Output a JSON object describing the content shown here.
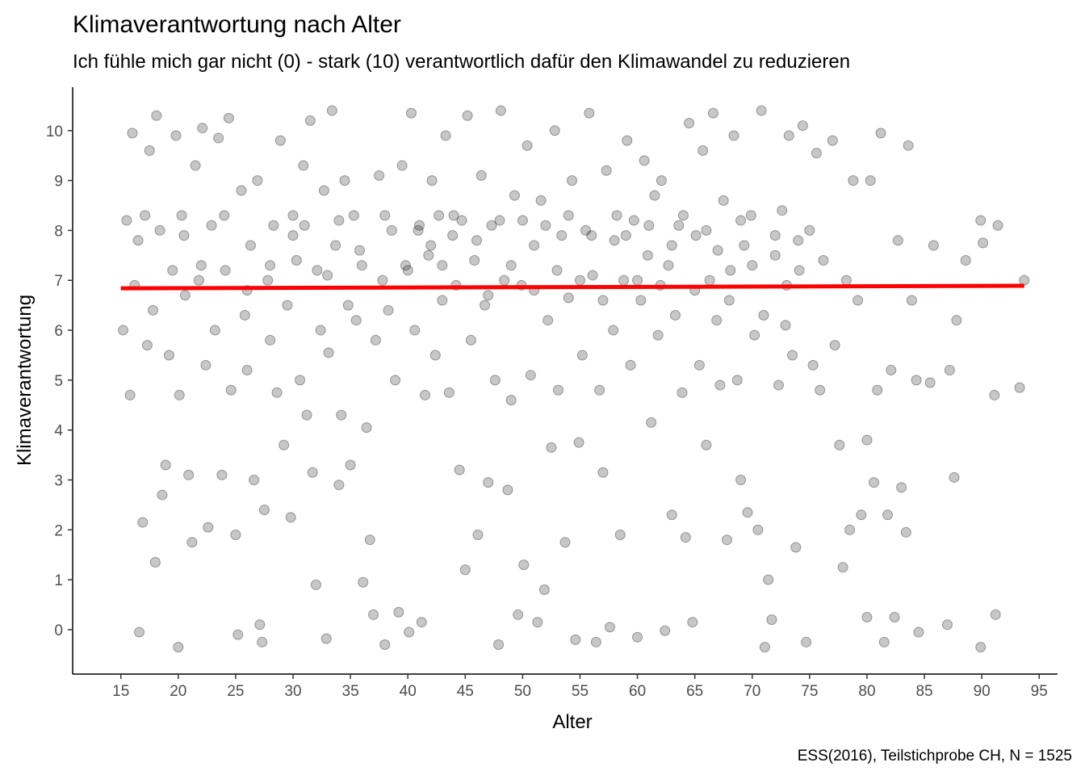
{
  "chart_data": {
    "type": "scatter",
    "title": "Klimaverantwortung nach Alter",
    "subtitle": "Ich fühle mich gar nicht (0) - stark (10) verantwortlich dafür den Klimawandel zu reduzieren",
    "x_label": "Alter",
    "y_label": "Klimaverantwortung",
    "caption": "ESS(2016), Teilstichprobe CH, N = 1525",
    "xlim": [
      10.8,
      96.6
    ],
    "ylim": [
      -0.89,
      10.87
    ],
    "xticks": [
      15,
      20,
      25,
      30,
      35,
      40,
      45,
      50,
      55,
      60,
      65,
      70,
      75,
      80,
      85,
      90,
      95
    ],
    "yticks": [
      0,
      1,
      2,
      3,
      4,
      5,
      6,
      7,
      8,
      9,
      10
    ],
    "grid": false,
    "points": {
      "color": "rgba(0,0,0,0.22)",
      "x": [
        15.2,
        15.5,
        15.8,
        16.0,
        16.2,
        16.5,
        16.6,
        16.9,
        17.1,
        17.3,
        17.5,
        17.8,
        18.0,
        18.1,
        18.4,
        18.6,
        18.9,
        19.2,
        19.5,
        19.8,
        20.0,
        20.1,
        20.3,
        20.6,
        20.9,
        21.2,
        21.5,
        21.8,
        22.1,
        22.4,
        22.6,
        22.9,
        23.2,
        23.5,
        23.8,
        24.1,
        24.4,
        24.6,
        25.0,
        25.2,
        25.5,
        25.8,
        26.0,
        26.3,
        26.6,
        26.9,
        27.1,
        27.3,
        27.5,
        27.8,
        28.0,
        28.3,
        28.6,
        28.9,
        29.2,
        29.5,
        29.8,
        30.0,
        30.3,
        30.6,
        30.9,
        31.2,
        31.5,
        31.7,
        32.0,
        32.1,
        32.4,
        32.7,
        32.9,
        33.1,
        33.4,
        33.7,
        34.0,
        34.2,
        34.5,
        34.8,
        35.0,
        35.3,
        35.5,
        35.8,
        36.1,
        36.4,
        36.7,
        37.0,
        37.2,
        37.5,
        37.8,
        38.0,
        38.3,
        38.6,
        38.9,
        39.2,
        39.5,
        39.8,
        40.1,
        40.3,
        40.6,
        40.9,
        41.2,
        41.5,
        41.8,
        42.1,
        42.4,
        42.7,
        43.0,
        43.3,
        43.6,
        43.9,
        44.2,
        44.5,
        44.7,
        45.0,
        45.2,
        45.5,
        45.8,
        46.1,
        46.4,
        46.7,
        47.0,
        47.3,
        47.6,
        47.9,
        48.1,
        48.4,
        48.7,
        49.0,
        49.3,
        49.6,
        49.9,
        50.1,
        50.4,
        50.7,
        51.0,
        51.3,
        51.6,
        51.9,
        52.2,
        52.5,
        52.8,
        53.1,
        53.4,
        53.7,
        54.0,
        54.3,
        54.6,
        54.9,
        55.2,
        55.5,
        55.8,
        56.1,
        56.4,
        56.7,
        57.0,
        57.3,
        57.6,
        57.9,
        58.2,
        58.5,
        58.8,
        59.1,
        59.4,
        59.7,
        60.0,
        60.3,
        60.6,
        60.9,
        61.2,
        61.5,
        61.8,
        62.1,
        62.4,
        62.7,
        63.0,
        63.3,
        63.6,
        63.9,
        64.2,
        64.5,
        64.8,
        65.1,
        65.4,
        65.7,
        66.0,
        66.3,
        66.6,
        66.9,
        67.2,
        67.5,
        67.8,
        68.1,
        68.4,
        68.7,
        69.0,
        69.3,
        69.6,
        69.9,
        70.2,
        70.5,
        70.8,
        71.1,
        71.4,
        71.7,
        72.0,
        72.3,
        72.6,
        72.9,
        73.2,
        73.5,
        73.8,
        74.1,
        74.4,
        74.7,
        75.0,
        75.3,
        75.6,
        75.9,
        76.2,
        77.0,
        77.2,
        77.6,
        77.9,
        78.2,
        78.5,
        78.8,
        79.2,
        79.5,
        80.0,
        80.0,
        80.3,
        80.6,
        80.9,
        81.2,
        81.5,
        81.8,
        82.1,
        82.4,
        82.7,
        83.0,
        83.4,
        83.6,
        83.9,
        84.3,
        84.5,
        85.5,
        85.8,
        87.0,
        87.2,
        87.6,
        87.8,
        88.6,
        89.9,
        89.9,
        90.1,
        91.1,
        91.2,
        91.4,
        93.3,
        93.7,
        20.5,
        22,
        24,
        26,
        28,
        30,
        31,
        33,
        34,
        36,
        38,
        40,
        41,
        42,
        43,
        44,
        46,
        47,
        48,
        49,
        50,
        51,
        52,
        53,
        54,
        55,
        56,
        57,
        58,
        59,
        60,
        61,
        62,
        63,
        64,
        65,
        66,
        67,
        68,
        69,
        70,
        71,
        72,
        73,
        74
      ],
      "y": [
        6.0,
        8.2,
        4.7,
        9.95,
        6.9,
        7.8,
        -0.05,
        2.15,
        8.3,
        5.7,
        9.6,
        6.4,
        1.35,
        10.3,
        8.0,
        2.7,
        3.3,
        5.5,
        7.2,
        9.9,
        -0.35,
        4.7,
        8.3,
        6.7,
        3.1,
        1.75,
        9.3,
        7.0,
        10.05,
        5.3,
        2.05,
        8.1,
        6.0,
        9.85,
        3.1,
        7.2,
        10.25,
        4.8,
        1.9,
        -0.1,
        8.8,
        6.3,
        5.2,
        7.7,
        3.0,
        9.0,
        0.1,
        -0.25,
        2.4,
        7.0,
        5.8,
        8.1,
        4.75,
        9.8,
        3.7,
        6.5,
        2.25,
        8.3,
        7.4,
        5.0,
        9.3,
        4.3,
        10.2,
        3.15,
        0.9,
        7.2,
        6.0,
        8.8,
        -0.18,
        5.55,
        10.4,
        7.7,
        2.9,
        4.3,
        9.0,
        6.5,
        3.3,
        8.3,
        6.2,
        7.6,
        0.95,
        4.05,
        1.8,
        0.3,
        5.8,
        9.1,
        7.0,
        -0.3,
        6.4,
        8.0,
        5.0,
        0.35,
        9.3,
        7.3,
        -0.05,
        10.35,
        6.0,
        8.0,
        0.15,
        4.7,
        7.5,
        9.0,
        5.5,
        8.3,
        6.6,
        9.9,
        4.75,
        7.9,
        6.9,
        3.2,
        8.2,
        1.2,
        10.3,
        5.8,
        7.4,
        1.9,
        9.1,
        6.5,
        2.95,
        8.1,
        5.0,
        -0.3,
        10.4,
        7.0,
        2.8,
        4.6,
        8.7,
        0.3,
        6.9,
        1.3,
        9.7,
        5.1,
        7.7,
        0.15,
        8.6,
        0.8,
        6.2,
        3.65,
        10.0,
        4.8,
        7.9,
        1.75,
        6.65,
        9.0,
        -0.2,
        3.75,
        5.5,
        8.0,
        10.35,
        7.1,
        -0.25,
        4.8,
        3.15,
        9.2,
        0.05,
        6.0,
        8.3,
        1.9,
        7.0,
        9.8,
        5.3,
        8.2,
        -0.15,
        6.6,
        9.4,
        7.5,
        4.15,
        8.7,
        5.9,
        9.0,
        -0.02,
        7.3,
        2.3,
        6.3,
        8.1,
        4.75,
        1.85,
        10.15,
        0.15,
        7.9,
        5.3,
        9.6,
        3.7,
        7.0,
        10.35,
        6.2,
        4.9,
        8.6,
        1.8,
        7.2,
        9.9,
        5.0,
        3.0,
        7.7,
        2.35,
        8.3,
        5.9,
        2.0,
        10.4,
        -0.35,
        1.0,
        0.2,
        7.5,
        4.9,
        8.4,
        6.1,
        9.9,
        5.5,
        1.65,
        7.2,
        10.1,
        -0.25,
        8.0,
        5.3,
        9.55,
        4.8,
        7.4,
        9.8,
        5.7,
        3.7,
        1.25,
        7.0,
        2.0,
        9.0,
        6.6,
        2.3,
        3.8,
        0.25,
        9.0,
        2.95,
        4.8,
        9.95,
        -0.25,
        2.3,
        5.2,
        0.25,
        7.8,
        2.85,
        1.95,
        9.7,
        6.6,
        5.0,
        -0.05,
        4.95,
        7.7,
        0.1,
        5.2,
        3.05,
        6.2,
        7.4,
        -0.35,
        8.2,
        7.75,
        4.7,
        0.3,
        8.1,
        4.85,
        7.0,
        7.9,
        7.3,
        8.3,
        6.8,
        7.3,
        7.9,
        8.1,
        7.1,
        8.2,
        7.3,
        8.3,
        7.2,
        8.1,
        7.7,
        7.3,
        8.3,
        7.8,
        6.7,
        8.2,
        7.3,
        8.2,
        6.8,
        8.1,
        7.2,
        8.3,
        7.0,
        7.9,
        6.6,
        7.8,
        7.9,
        7.0,
        8.1,
        6.9,
        7.7,
        8.3,
        6.8,
        8.0,
        7.6,
        6.6,
        8.2,
        7.3,
        6.3,
        7.9,
        6.9,
        7.8
      ]
    },
    "fit_line": {
      "color": "#ff0000",
      "x": [
        15,
        93.7
      ],
      "y": [
        6.84,
        6.89
      ]
    }
  }
}
